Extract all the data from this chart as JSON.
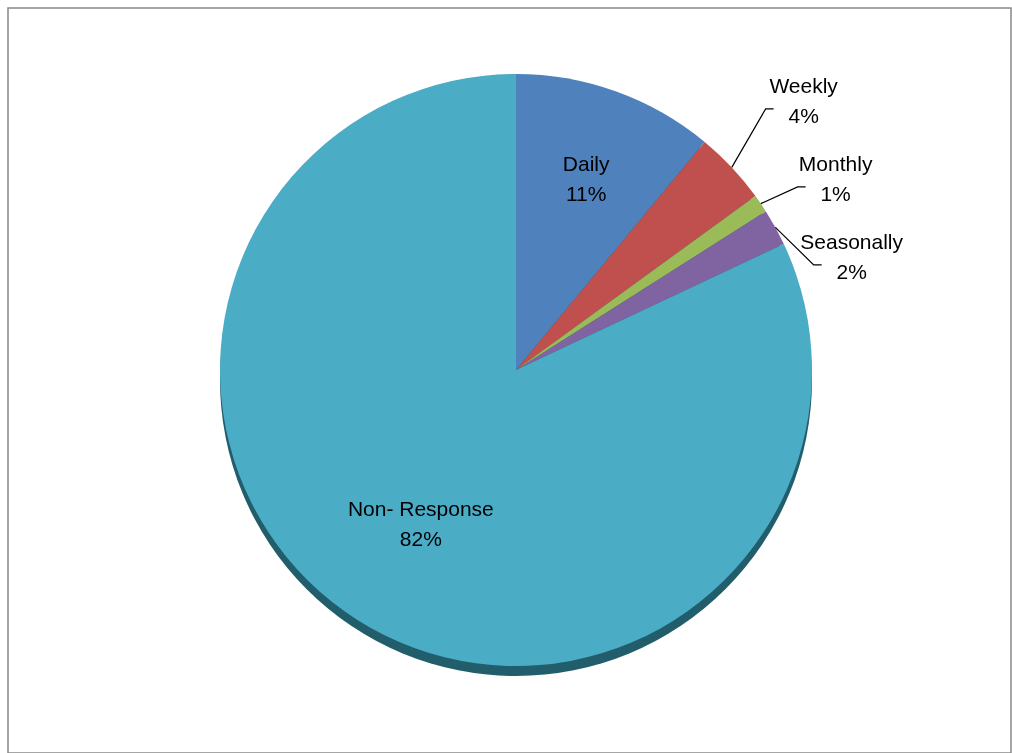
{
  "chart_data": {
    "type": "pie",
    "categories": [
      "Daily",
      "Weekly",
      "Monthly",
      "Seasonally",
      "Non- Response"
    ],
    "values": [
      11,
      4,
      1,
      2,
      82
    ],
    "colors": [
      "#4f81bd",
      "#c0504d",
      "#9bbb59",
      "#8064a2",
      "#4bacc6"
    ],
    "value_labels": [
      "11%",
      "4%",
      "1%",
      "2%",
      "82%"
    ]
  }
}
